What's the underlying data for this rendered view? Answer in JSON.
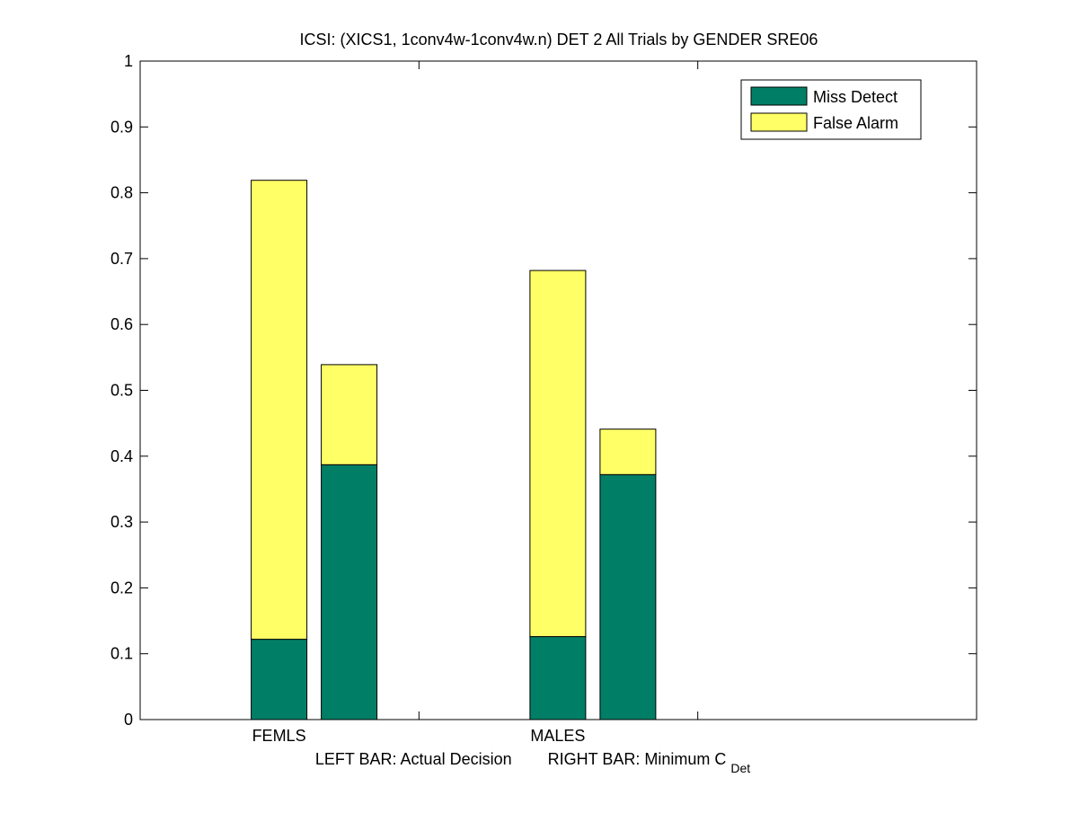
{
  "chart_data": {
    "type": "bar",
    "stacked": true,
    "title": "ICSI: (XICS1, 1conv4w-1conv4w.n) DET 2 All Trials by GENDER SRE06",
    "xlabel": {
      "left_part": "LEFT BAR: Actual Decision",
      "right_part": "RIGHT BAR: Minimum C",
      "right_subscript": "Det"
    },
    "ylabel": "",
    "ylim": [
      0,
      1
    ],
    "yticks": [
      "0",
      "0.1",
      "0.2",
      "0.3",
      "0.4",
      "0.5",
      "0.6",
      "0.7",
      "0.8",
      "0.9",
      "1"
    ],
    "categories": [
      "FEMLS",
      "MALES"
    ],
    "bars_per_category": [
      "Actual Decision",
      "Minimum C_Det"
    ],
    "series": [
      {
        "name": "Miss Detect",
        "color": "#007f66",
        "values": [
          [
            0.122,
            0.387
          ],
          [
            0.126,
            0.372
          ]
        ]
      },
      {
        "name": "False Alarm",
        "color": "#ffff66",
        "values": [
          [
            0.697,
            0.152
          ],
          [
            0.556,
            0.069
          ]
        ]
      }
    ],
    "grid": false,
    "legend_position": "top-right"
  }
}
